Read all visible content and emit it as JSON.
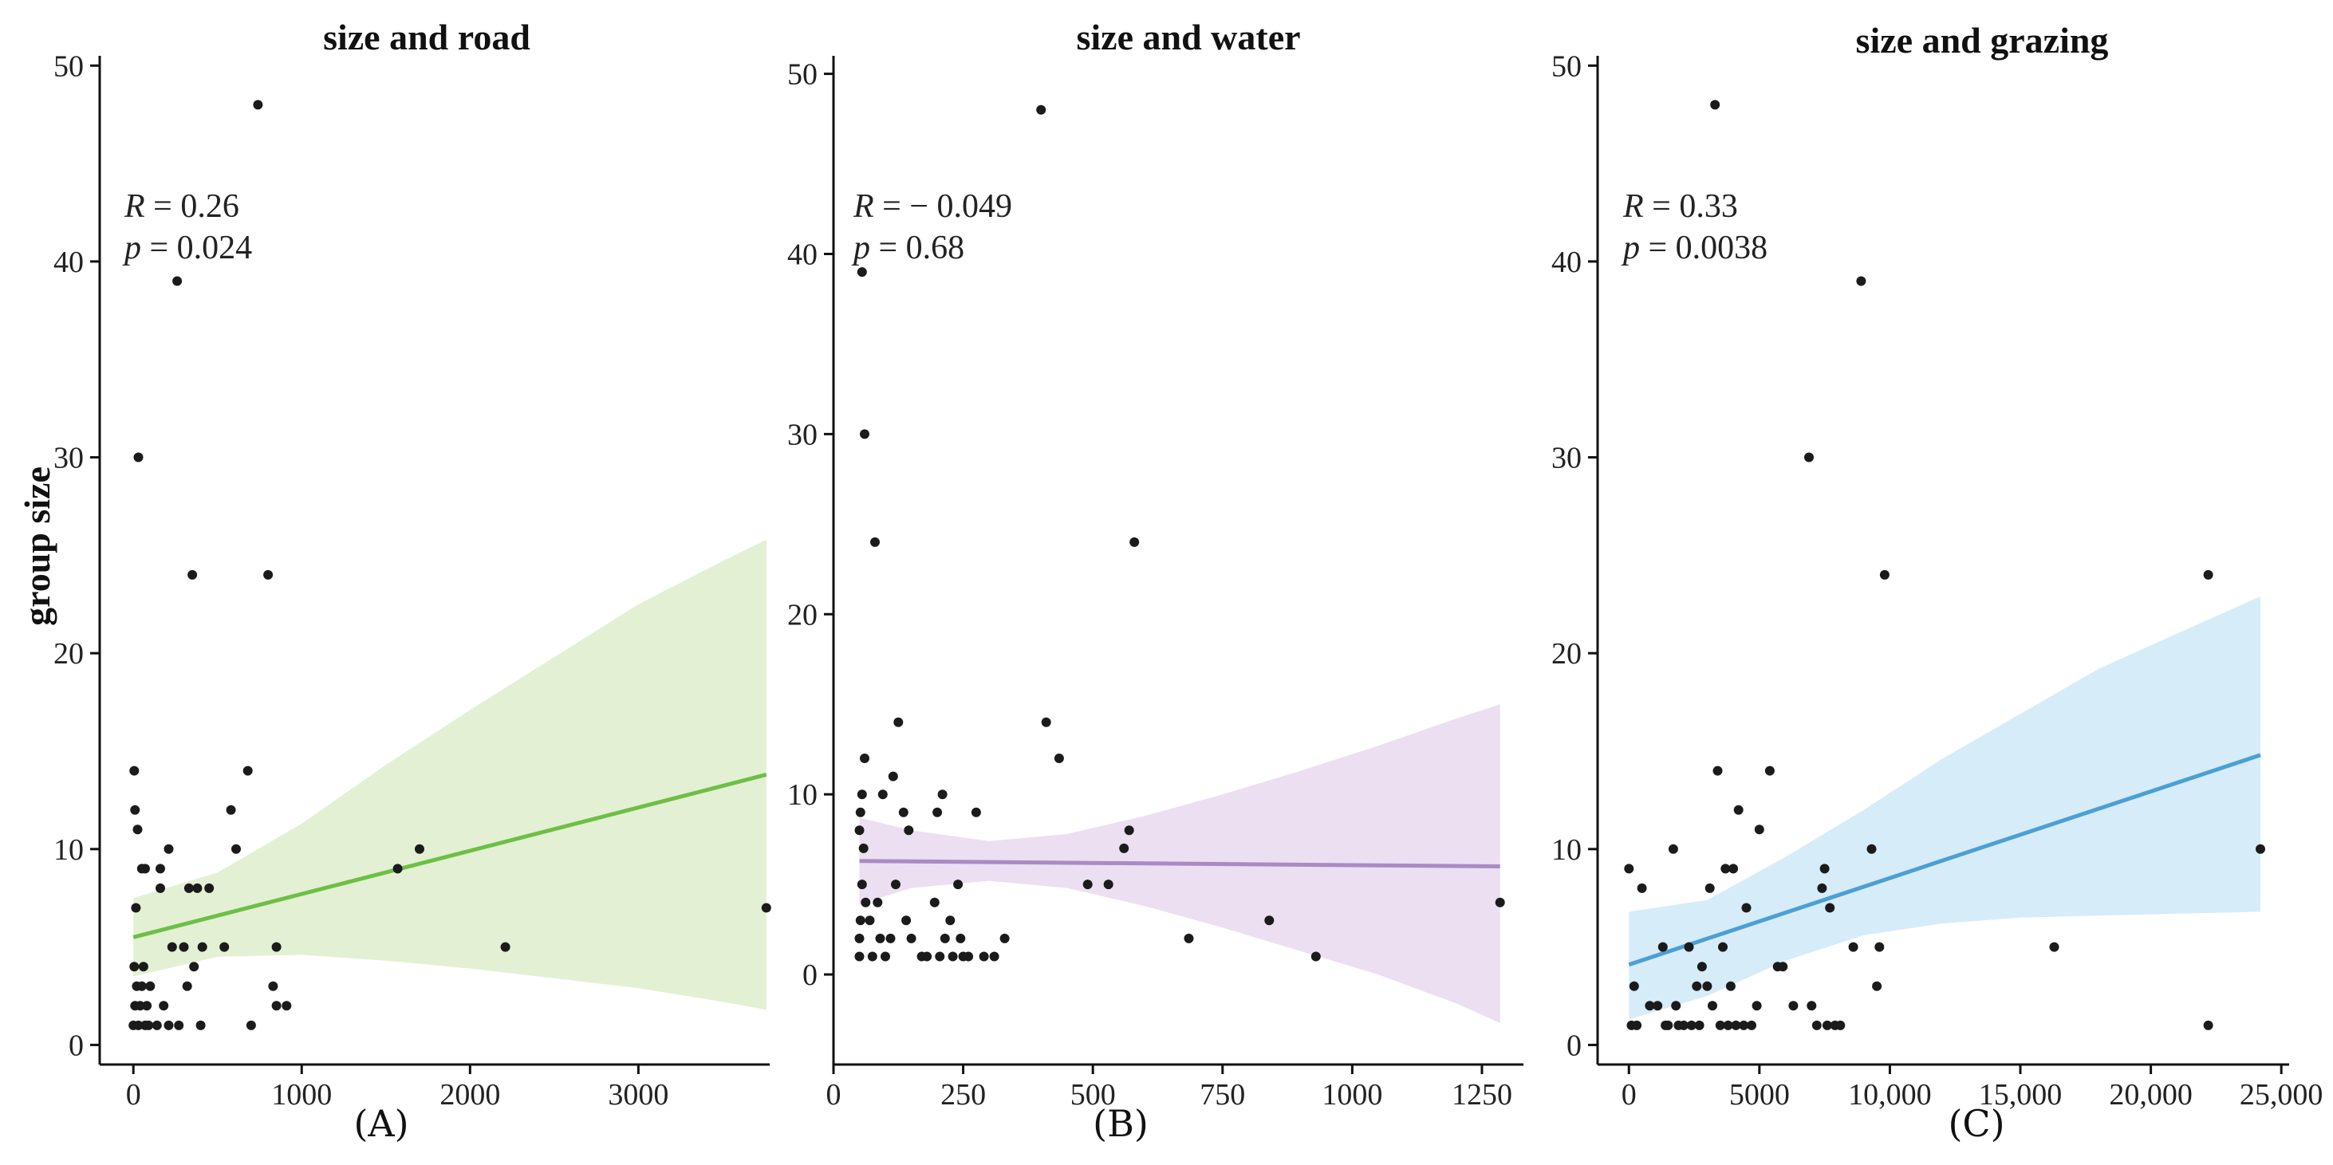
{
  "figure": {
    "ylabel": "group size"
  },
  "chart_data": [
    {
      "type": "scatter",
      "title": "size and road",
      "panel_label": "(A)",
      "xlabel": "",
      "ylabel": "group size",
      "xlim": [
        -200,
        3780
      ],
      "ylim": [
        -1,
        50.5
      ],
      "x_ticks": [
        0,
        1000,
        2000,
        3000
      ],
      "x_tick_labels": [
        "0",
        "1000",
        "2000",
        "3000"
      ],
      "y_ticks": [
        0,
        10,
        20,
        30,
        40,
        50
      ],
      "y_tick_labels": [
        "0",
        "10",
        "20",
        "30",
        "40",
        "50"
      ],
      "stats": {
        "r_symbol": "R",
        "r_value": " = 0.26",
        "p_symbol": "p",
        "p_value": " = 0.024"
      },
      "fit": {
        "x": [
          0,
          3760
        ],
        "y": [
          5.5,
          13.8
        ],
        "color": "#6dbf45"
      },
      "band": {
        "x": [
          0,
          500,
          1000,
          1500,
          2000,
          2500,
          3000,
          3500,
          3760
        ],
        "lower": [
          3.5,
          4.5,
          4.6,
          4.3,
          3.9,
          3.4,
          2.9,
          2.2,
          1.8
        ],
        "upper": [
          7.5,
          8.8,
          11.3,
          14.3,
          17.1,
          19.8,
          22.5,
          24.7,
          25.8
        ],
        "color": "#e3f0d4"
      },
      "points": [
        {
          "x": 0,
          "y": 1
        },
        {
          "x": 10,
          "y": 2
        },
        {
          "x": 20,
          "y": 3
        },
        {
          "x": 5,
          "y": 4
        },
        {
          "x": 30,
          "y": 1
        },
        {
          "x": 40,
          "y": 2
        },
        {
          "x": 50,
          "y": 3
        },
        {
          "x": 60,
          "y": 4
        },
        {
          "x": 70,
          "y": 1
        },
        {
          "x": 80,
          "y": 2
        },
        {
          "x": 90,
          "y": 1
        },
        {
          "x": 100,
          "y": 3
        },
        {
          "x": 15,
          "y": 7
        },
        {
          "x": 25,
          "y": 11
        },
        {
          "x": 10,
          "y": 12
        },
        {
          "x": 5,
          "y": 14
        },
        {
          "x": 30,
          "y": 30
        },
        {
          "x": 50,
          "y": 9
        },
        {
          "x": 70,
          "y": 9
        },
        {
          "x": 140,
          "y": 1
        },
        {
          "x": 160,
          "y": 9
        },
        {
          "x": 160,
          "y": 8
        },
        {
          "x": 180,
          "y": 2
        },
        {
          "x": 210,
          "y": 1
        },
        {
          "x": 210,
          "y": 10
        },
        {
          "x": 230,
          "y": 5
        },
        {
          "x": 260,
          "y": 39
        },
        {
          "x": 270,
          "y": 1
        },
        {
          "x": 300,
          "y": 5
        },
        {
          "x": 320,
          "y": 3
        },
        {
          "x": 330,
          "y": 8
        },
        {
          "x": 350,
          "y": 24
        },
        {
          "x": 360,
          "y": 4
        },
        {
          "x": 380,
          "y": 8
        },
        {
          "x": 400,
          "y": 1
        },
        {
          "x": 410,
          "y": 5
        },
        {
          "x": 450,
          "y": 8
        },
        {
          "x": 540,
          "y": 5
        },
        {
          "x": 580,
          "y": 12
        },
        {
          "x": 610,
          "y": 10
        },
        {
          "x": 680,
          "y": 14
        },
        {
          "x": 700,
          "y": 1
        },
        {
          "x": 740,
          "y": 48
        },
        {
          "x": 800,
          "y": 24
        },
        {
          "x": 830,
          "y": 3
        },
        {
          "x": 850,
          "y": 5
        },
        {
          "x": 850,
          "y": 2
        },
        {
          "x": 910,
          "y": 2
        },
        {
          "x": 1570,
          "y": 9
        },
        {
          "x": 1700,
          "y": 10
        },
        {
          "x": 2210,
          "y": 5
        },
        {
          "x": 3760,
          "y": 7
        }
      ]
    },
    {
      "type": "scatter",
      "title": "size and water",
      "panel_label": "(B)",
      "xlabel": "",
      "ylabel": "",
      "xlim": [
        0,
        1330
      ],
      "ylim": [
        -5,
        51
      ],
      "x_ticks": [
        0,
        250,
        500,
        750,
        1000,
        1250
      ],
      "x_tick_labels": [
        "0",
        "250",
        "500",
        "750",
        "1000",
        "1250"
      ],
      "y_ticks": [
        0,
        10,
        20,
        30,
        40,
        50
      ],
      "y_tick_labels": [
        "0",
        "10",
        "20",
        "30",
        "40",
        "50"
      ],
      "stats": {
        "r_symbol": "R",
        "r_value": " = − 0.049",
        "p_symbol": "p",
        "p_value": " = 0.68"
      },
      "fit": {
        "x": [
          50,
          1285
        ],
        "y": [
          6.3,
          6.0
        ],
        "color": "#a98bc4"
      },
      "band": {
        "x": [
          50,
          150,
          300,
          450,
          600,
          750,
          900,
          1050,
          1200,
          1285
        ],
        "lower": [
          3.9,
          4.8,
          5.2,
          4.8,
          3.8,
          2.6,
          1.3,
          0.0,
          -1.6,
          -2.7
        ],
        "upper": [
          8.7,
          8.0,
          7.4,
          7.8,
          8.8,
          10.0,
          11.3,
          12.7,
          14.2,
          15.0
        ],
        "color": "#ebdff1"
      },
      "points": [
        {
          "x": 50,
          "y": 1
        },
        {
          "x": 50,
          "y": 2
        },
        {
          "x": 52,
          "y": 3
        },
        {
          "x": 55,
          "y": 5
        },
        {
          "x": 50,
          "y": 8
        },
        {
          "x": 52,
          "y": 9
        },
        {
          "x": 55,
          "y": 10
        },
        {
          "x": 58,
          "y": 7
        },
        {
          "x": 62,
          "y": 4
        },
        {
          "x": 60,
          "y": 12
        },
        {
          "x": 55,
          "y": 39
        },
        {
          "x": 60,
          "y": 30
        },
        {
          "x": 70,
          "y": 3
        },
        {
          "x": 75,
          "y": 1
        },
        {
          "x": 80,
          "y": 24
        },
        {
          "x": 85,
          "y": 4
        },
        {
          "x": 90,
          "y": 2
        },
        {
          "x": 95,
          "y": 10
        },
        {
          "x": 100,
          "y": 1
        },
        {
          "x": 110,
          "y": 2
        },
        {
          "x": 115,
          "y": 11
        },
        {
          "x": 120,
          "y": 5
        },
        {
          "x": 125,
          "y": 14
        },
        {
          "x": 135,
          "y": 9
        },
        {
          "x": 140,
          "y": 3
        },
        {
          "x": 145,
          "y": 8
        },
        {
          "x": 150,
          "y": 2
        },
        {
          "x": 170,
          "y": 1
        },
        {
          "x": 180,
          "y": 1
        },
        {
          "x": 195,
          "y": 4
        },
        {
          "x": 200,
          "y": 9
        },
        {
          "x": 205,
          "y": 1
        },
        {
          "x": 210,
          "y": 10
        },
        {
          "x": 215,
          "y": 2
        },
        {
          "x": 225,
          "y": 3
        },
        {
          "x": 230,
          "y": 1
        },
        {
          "x": 240,
          "y": 5
        },
        {
          "x": 245,
          "y": 2
        },
        {
          "x": 250,
          "y": 1
        },
        {
          "x": 260,
          "y": 1
        },
        {
          "x": 275,
          "y": 9
        },
        {
          "x": 290,
          "y": 1
        },
        {
          "x": 310,
          "y": 1
        },
        {
          "x": 330,
          "y": 2
        },
        {
          "x": 400,
          "y": 48
        },
        {
          "x": 410,
          "y": 14
        },
        {
          "x": 435,
          "y": 12
        },
        {
          "x": 490,
          "y": 5
        },
        {
          "x": 530,
          "y": 5
        },
        {
          "x": 560,
          "y": 7
        },
        {
          "x": 570,
          "y": 8
        },
        {
          "x": 580,
          "y": 24
        },
        {
          "x": 685,
          "y": 2
        },
        {
          "x": 840,
          "y": 3
        },
        {
          "x": 930,
          "y": 1
        },
        {
          "x": 1285,
          "y": 4
        }
      ]
    },
    {
      "type": "scatter",
      "title": "size and grazing",
      "panel_label": "(C)",
      "xlabel": "",
      "ylabel": "",
      "xlim": [
        -1200,
        25300
      ],
      "ylim": [
        -1,
        50.5
      ],
      "x_ticks": [
        0,
        5000,
        10000,
        15000,
        20000,
        25000
      ],
      "x_tick_labels": [
        "0",
        "5000",
        "10,000",
        "15,000",
        "20,000",
        "25,000"
      ],
      "y_ticks": [
        0,
        10,
        20,
        30,
        40,
        50
      ],
      "y_tick_labels": [
        "0",
        "10",
        "20",
        "30",
        "40",
        "50"
      ],
      "stats": {
        "r_symbol": "R",
        "r_value": " = 0.33",
        "p_symbol": "p",
        "p_value": " = 0.0038"
      },
      "fit": {
        "x": [
          0,
          24200
        ],
        "y": [
          4.1,
          14.8
        ],
        "color": "#4b9fd5"
      },
      "band": {
        "x": [
          0,
          3000,
          6000,
          9000,
          12000,
          15000,
          18000,
          21000,
          24200
        ],
        "lower": [
          1.3,
          2.5,
          4.3,
          5.6,
          6.2,
          6.5,
          6.6,
          6.7,
          6.8
        ],
        "upper": [
          6.8,
          7.4,
          9.6,
          12.0,
          14.6,
          16.9,
          19.2,
          21.0,
          22.9
        ],
        "color": "#d6ecf8"
      },
      "points": [
        {
          "x": 0,
          "y": 9
        },
        {
          "x": 100,
          "y": 1
        },
        {
          "x": 200,
          "y": 3
        },
        {
          "x": 300,
          "y": 1
        },
        {
          "x": 500,
          "y": 8
        },
        {
          "x": 800,
          "y": 2
        },
        {
          "x": 1100,
          "y": 2
        },
        {
          "x": 1300,
          "y": 5
        },
        {
          "x": 1400,
          "y": 1
        },
        {
          "x": 1500,
          "y": 1
        },
        {
          "x": 1700,
          "y": 10
        },
        {
          "x": 1800,
          "y": 2
        },
        {
          "x": 1900,
          "y": 1
        },
        {
          "x": 2100,
          "y": 1
        },
        {
          "x": 2300,
          "y": 5
        },
        {
          "x": 2400,
          "y": 1
        },
        {
          "x": 2600,
          "y": 3
        },
        {
          "x": 2700,
          "y": 1
        },
        {
          "x": 2800,
          "y": 4
        },
        {
          "x": 3000,
          "y": 3
        },
        {
          "x": 3100,
          "y": 8
        },
        {
          "x": 3200,
          "y": 2
        },
        {
          "x": 3300,
          "y": 48
        },
        {
          "x": 3400,
          "y": 14
        },
        {
          "x": 3500,
          "y": 1
        },
        {
          "x": 3600,
          "y": 5
        },
        {
          "x": 3700,
          "y": 9
        },
        {
          "x": 3800,
          "y": 1
        },
        {
          "x": 3900,
          "y": 3
        },
        {
          "x": 4000,
          "y": 9
        },
        {
          "x": 4100,
          "y": 1
        },
        {
          "x": 4200,
          "y": 12
        },
        {
          "x": 4400,
          "y": 1
        },
        {
          "x": 4500,
          "y": 7
        },
        {
          "x": 4700,
          "y": 1
        },
        {
          "x": 4900,
          "y": 2
        },
        {
          "x": 5000,
          "y": 11
        },
        {
          "x": 5400,
          "y": 14
        },
        {
          "x": 5700,
          "y": 4
        },
        {
          "x": 5900,
          "y": 4
        },
        {
          "x": 6300,
          "y": 2
        },
        {
          "x": 6900,
          "y": 30
        },
        {
          "x": 7000,
          "y": 2
        },
        {
          "x": 7200,
          "y": 1
        },
        {
          "x": 7400,
          "y": 8
        },
        {
          "x": 7500,
          "y": 9
        },
        {
          "x": 7600,
          "y": 1
        },
        {
          "x": 7700,
          "y": 7
        },
        {
          "x": 7900,
          "y": 1
        },
        {
          "x": 8100,
          "y": 1
        },
        {
          "x": 8600,
          "y": 5
        },
        {
          "x": 8900,
          "y": 39
        },
        {
          "x": 9300,
          "y": 10
        },
        {
          "x": 9500,
          "y": 3
        },
        {
          "x": 9600,
          "y": 5
        },
        {
          "x": 9800,
          "y": 24
        },
        {
          "x": 16300,
          "y": 5
        },
        {
          "x": 22200,
          "y": 24
        },
        {
          "x": 22200,
          "y": 1
        },
        {
          "x": 24200,
          "y": 10
        }
      ]
    }
  ]
}
